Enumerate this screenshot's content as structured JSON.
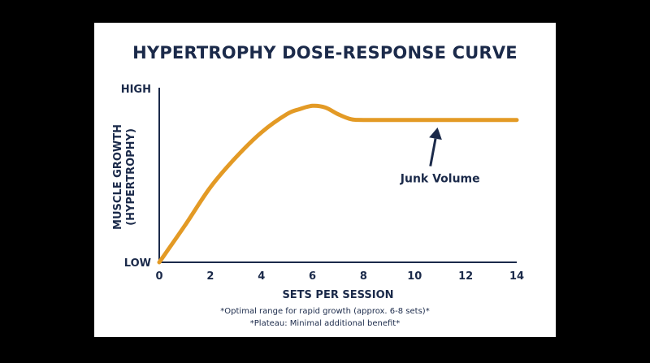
{
  "chart_data": {
    "type": "line",
    "title": "HYPERTROPHY DOSE-RESPONSE CURVE",
    "xlabel": "SETS PER SESSION",
    "ylabel_lines": [
      "MUSCLE GROWTH",
      "(HYPERTROPHY)"
    ],
    "xlim": [
      0,
      14
    ],
    "ylim": [
      0,
      100
    ],
    "x_ticks": [
      0,
      2,
      4,
      6,
      8,
      10,
      12,
      14
    ],
    "x_tick_labels": [
      "0",
      "2",
      "4",
      "6",
      "8",
      "10",
      "12",
      "14"
    ],
    "y_tick_labels": [
      {
        "value": 100,
        "label": "HIGH"
      },
      {
        "value": 0,
        "label": "LOW"
      }
    ],
    "grid": false,
    "series": [
      {
        "color": "#e39a25",
        "points": [
          [
            0,
            0
          ],
          [
            1,
            22
          ],
          [
            2,
            45
          ],
          [
            3,
            63
          ],
          [
            4,
            78
          ],
          [
            5,
            89
          ],
          [
            5.5,
            92
          ],
          [
            6,
            94
          ],
          [
            6.5,
            93
          ],
          [
            7,
            89
          ],
          [
            7.5,
            86
          ],
          [
            8,
            85.5
          ],
          [
            10,
            85.5
          ],
          [
            12,
            85.5
          ],
          [
            14,
            85.5
          ]
        ]
      }
    ],
    "annotations": [
      {
        "text": "Junk Volume",
        "text_at": [
          11,
          48
        ],
        "arrow_to": [
          10.9,
          81
        ]
      }
    ],
    "footnotes": [
      "*Optimal range for rapid growth (approx. 6-8 sets)*",
      "*Plateau: Minimal additional benefit*"
    ]
  },
  "colors": {
    "background": "#000000",
    "card": "#ffffff",
    "navy": "#1b2a4a",
    "curve": "#e39a25"
  }
}
